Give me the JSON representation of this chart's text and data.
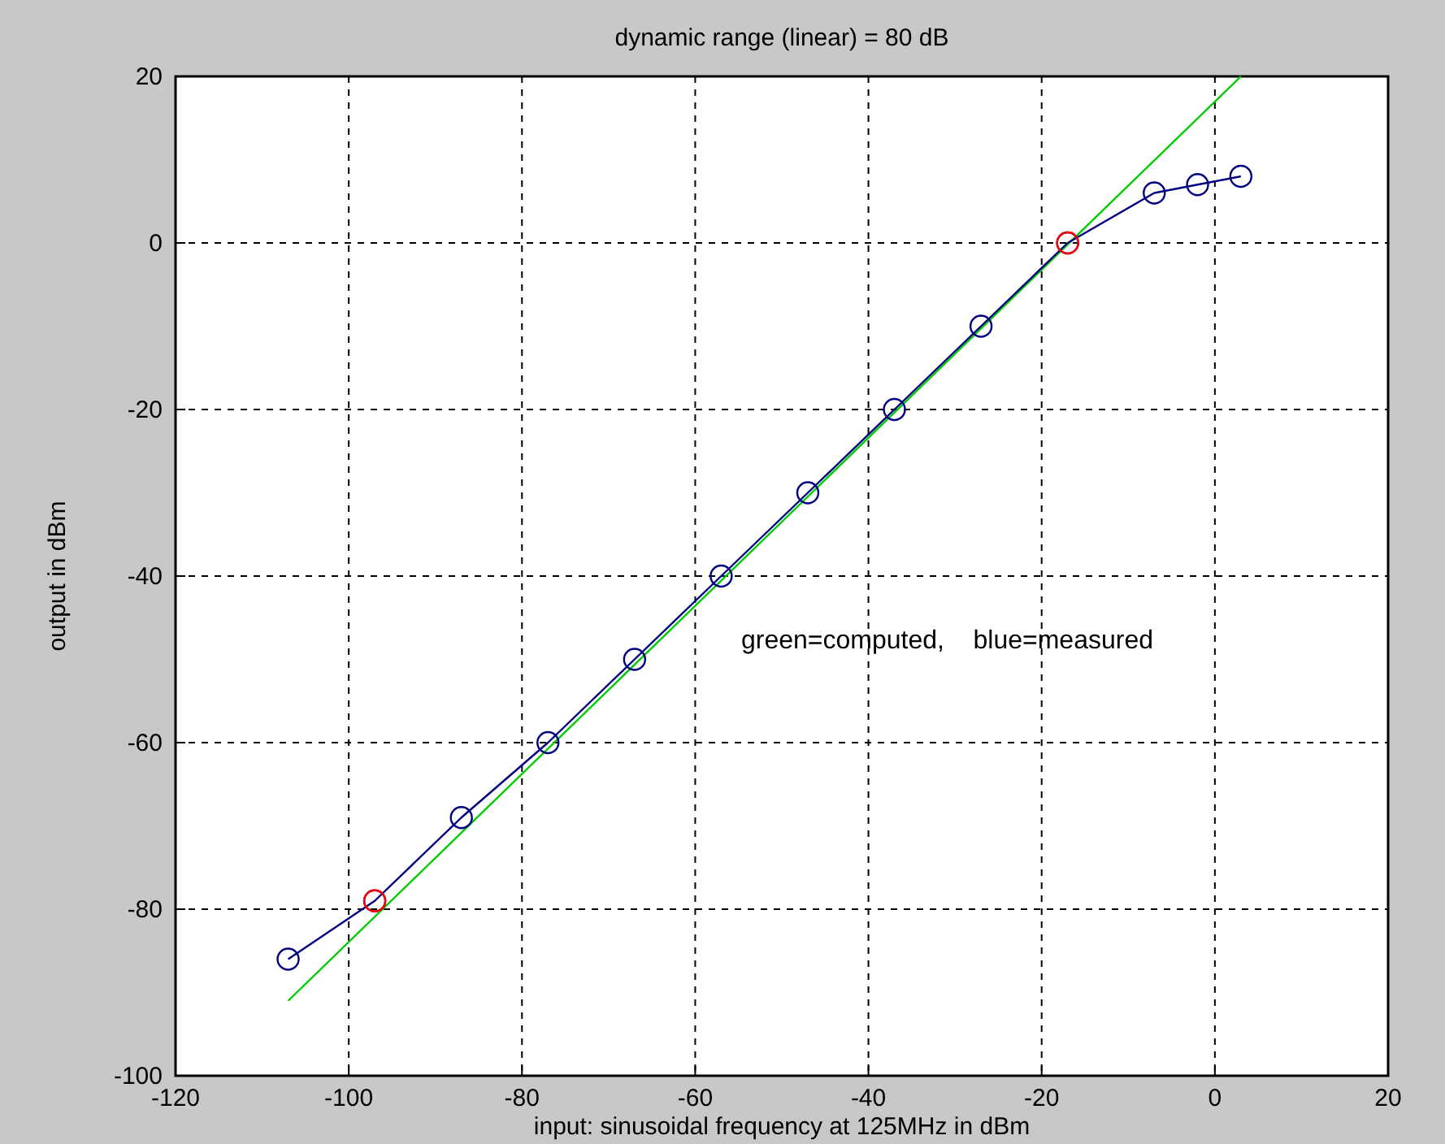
{
  "chart_data": {
    "type": "line",
    "title": "dynamic range (linear) = 80 dB",
    "xlabel": "input: sinusoidal frequency at 125MHz in dBm",
    "ylabel": "output in dBm",
    "xlim": [
      -120,
      20
    ],
    "xticks": [
      -120,
      -100,
      -80,
      -60,
      -40,
      -20,
      0,
      20
    ],
    "ylim": [
      -100,
      20
    ],
    "yticks": [
      -100,
      -80,
      -60,
      -40,
      -20,
      0,
      20
    ],
    "grid": true,
    "annotations": [
      "green=computed,    blue=measured"
    ],
    "series": [
      {
        "color": "#00cc00",
        "marker": "none",
        "x": [
          -107,
          3
        ],
        "values": [
          -91,
          20
        ]
      },
      {
        "color": "#000080",
        "marker": "circle",
        "x": [
          -107,
          -97,
          -87,
          -77,
          -67,
          -57,
          -47,
          -37,
          -27,
          -17,
          -7,
          -2,
          3
        ],
        "values": [
          -86,
          -79,
          -69,
          -60,
          -50,
          -40,
          -30,
          -20,
          -10,
          0,
          6,
          7,
          8
        ]
      },
      {
        "type": "scatter",
        "color": "#ff0000",
        "marker": "circle",
        "x": [
          -97,
          -17
        ],
        "values": [
          -79,
          0
        ]
      }
    ]
  }
}
